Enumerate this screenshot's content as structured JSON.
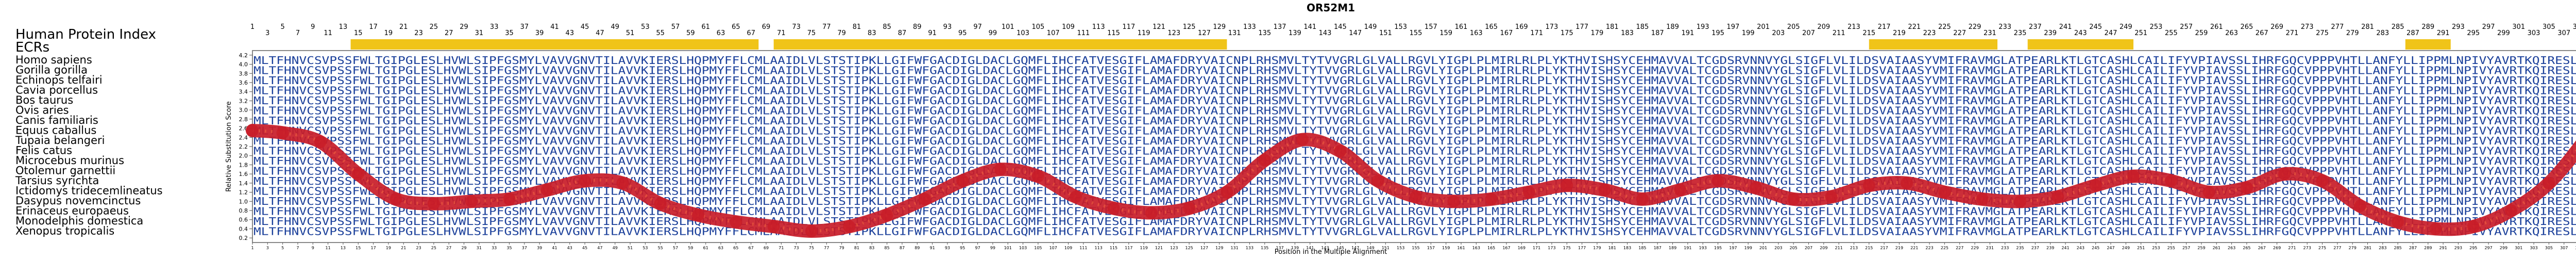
{
  "title": "OR52M1",
  "index_label": "Human Protein Index",
  "ecrs_label": "ECRs",
  "y_axis_label": "Relative Substitution Score",
  "x_axis_label": "Position in the Multiple Alignment",
  "colors": {
    "curve": "#c81c28",
    "curve_spot": "#f06040",
    "sequence_text": "#1a3f9a",
    "ecr_bar": "#f0c419",
    "frame": "#888888"
  },
  "y_ticks": [
    "0.2",
    "0.4",
    "0.6",
    "0.8",
    "1.0",
    "1.2",
    "1.4",
    "1.6",
    "1.8",
    "2.0",
    "2.2",
    "2.4",
    "2.6",
    "2.8",
    "3.0",
    "3.2",
    "3.4",
    "3.6",
    "3.8",
    "4.0",
    "4.2"
  ],
  "species": [
    "Homo sapiens",
    "Gorilla gorilla",
    "Echinops telfairi",
    "Cavia porcellus",
    "Bos taurus",
    "Ovis aries",
    "Canis familiaris",
    "Equus caballus",
    "Tupaia belangeri",
    "Felis catus",
    "Microcebus murinus",
    "Otolemur garnettii",
    "Tarsius syrichta",
    "Ictidomys tridecemlineatus",
    "Dasypus novemcinctus",
    "Erinaceus europaeus",
    "Monodelphis domestica",
    "Xenopus tropicalis"
  ],
  "sequence": "MLTFHNVCSVPSSFWLTGIPGLESLHVWLSIPFGSMYLVAVVGNVTILAVVKIERSLHQPMYFFLCMLAAIDLVLSTSTIPKLLGIFWFGACDIGLDACLGQMFLIHCFATVESGIFLAMAFDRYVAICNPLRHSMVLTYTVVGRLGLVALLRGVLYIGPLPLMIRLRLPLYKTHVISHSYCEHMAVVALTCGDSRVNNVYGLSIGFLVLILDSVAIAASYVMIFRAVMGLATPEARLKTLGTCASHLCAILIFYVPIAVSSLIHRFGQCVPPPVHTLLANFYLLIPPMLNPIVYAVRTKQIRESLLQRIPRLPF",
  "chart_data": {
    "type": "line",
    "title": "OR52M1",
    "xlabel": "Position in the Multiple Alignment",
    "ylabel": "Relative Substitution Score",
    "xlim": [
      1,
      318
    ],
    "ylim": [
      0.1,
      4.3
    ],
    "top_index_ticks": [
      "1",
      "3",
      "5",
      "7",
      "9",
      "11",
      "13",
      "15",
      "17",
      "19",
      "21",
      "23",
      "25",
      "27",
      "29",
      "31",
      "33",
      "35",
      "37",
      "39",
      "41",
      "43",
      "45",
      "47",
      "49",
      "51",
      "53",
      "55",
      "57",
      "59",
      "61",
      "63",
      "65",
      "67",
      "69",
      "71",
      "73",
      "75",
      "77",
      "79",
      "81",
      "83",
      "85",
      "87",
      "89",
      "91",
      "93",
      "95",
      "97",
      "99",
      "101",
      "103",
      "105",
      "107",
      "109",
      "111",
      "113",
      "115",
      "117",
      "119",
      "121",
      "123",
      "125",
      "127",
      "129",
      "131",
      "133",
      "135",
      "137",
      "139",
      "141",
      "143",
      "145",
      "147",
      "149",
      "151",
      "153",
      "155",
      "157",
      "159",
      "161",
      "163",
      "165",
      "167",
      "169",
      "171",
      "173",
      "175",
      "177",
      "179",
      "181",
      "183",
      "185",
      "187",
      "189",
      "191",
      "193",
      "195",
      "197",
      "199",
      "201",
      "203",
      "205",
      "207",
      "209",
      "211",
      "213",
      "215",
      "217",
      "219",
      "221",
      "223",
      "225",
      "227",
      "229",
      "231",
      "233",
      "235",
      "237",
      "239",
      "241",
      "243",
      "245",
      "247",
      "249",
      "251",
      "253",
      "255",
      "257",
      "259",
      "261",
      "263",
      "265",
      "267",
      "269",
      "271",
      "273",
      "275",
      "277",
      "279",
      "281",
      "283",
      "285",
      "287",
      "289",
      "291",
      "293",
      "295",
      "297",
      "299",
      "301",
      "303",
      "305",
      "307",
      "309",
      "311",
      "313",
      "315",
      "317"
    ],
    "bottom_ticks": [
      "1",
      "3",
      "5",
      "7",
      "9",
      "11",
      "13",
      "15",
      "17",
      "19",
      "21",
      "23",
      "25",
      "27",
      "29",
      "31",
      "33",
      "35",
      "37",
      "39",
      "41",
      "43",
      "45",
      "47",
      "49",
      "51",
      "53",
      "55",
      "57",
      "59",
      "61",
      "63",
      "65",
      "67",
      "69",
      "71",
      "73",
      "75",
      "77",
      "79",
      "81",
      "83",
      "85",
      "87",
      "89",
      "91",
      "93",
      "95",
      "97",
      "99",
      "101",
      "103",
      "105",
      "107",
      "109",
      "111",
      "113",
      "115",
      "117",
      "119",
      "121",
      "123",
      "125",
      "127",
      "129",
      "131",
      "133",
      "135",
      "137",
      "139",
      "141",
      "143",
      "145",
      "147",
      "149",
      "151",
      "153",
      "155",
      "157",
      "159",
      "161",
      "163",
      "165",
      "167",
      "169",
      "171",
      "173",
      "175",
      "177",
      "179",
      "181",
      "183",
      "185",
      "187",
      "189",
      "191",
      "193",
      "195",
      "197",
      "199",
      "201",
      "203",
      "205",
      "207",
      "209",
      "211",
      "213",
      "215",
      "217",
      "219",
      "221",
      "223",
      "225",
      "227",
      "229",
      "231",
      "233",
      "235",
      "237",
      "239",
      "241",
      "243",
      "245",
      "247",
      "249",
      "251",
      "253",
      "255",
      "257",
      "259",
      "261",
      "263",
      "265",
      "267",
      "269",
      "271",
      "273",
      "275",
      "277",
      "279",
      "281",
      "283",
      "285",
      "287",
      "289",
      "291",
      "293",
      "295",
      "297",
      "299",
      "301",
      "303",
      "305",
      "307",
      "309",
      "311",
      "313",
      "315",
      "317"
    ],
    "ecr_ranges": [
      [
        14,
        68
      ],
      [
        70,
        130
      ],
      [
        215,
        232
      ],
      [
        236,
        250
      ],
      [
        286,
        292
      ]
    ],
    "series": [
      {
        "x": [
          1,
          5,
          10,
          15,
          20,
          25,
          30,
          35,
          40,
          45,
          50,
          55,
          60,
          65,
          70,
          75,
          80,
          85,
          90,
          95,
          100,
          105,
          110,
          115,
          120,
          125,
          130,
          135,
          140,
          145,
          150,
          155,
          160,
          165,
          170,
          175,
          180,
          185,
          190,
          195,
          200,
          205,
          210,
          215,
          220,
          225,
          230,
          235,
          240,
          245,
          250,
          255,
          260,
          265,
          270,
          275,
          280,
          285,
          290,
          295,
          300,
          305,
          310,
          315,
          318
        ],
        "y": [
          2.55,
          2.5,
          2.3,
          1.6,
          1.05,
          0.95,
          1.0,
          1.05,
          1.25,
          1.45,
          1.4,
          0.95,
          0.7,
          0.55,
          0.45,
          0.35,
          0.45,
          0.7,
          1.05,
          1.45,
          1.7,
          1.55,
          1.1,
          0.85,
          0.75,
          0.85,
          1.2,
          1.9,
          2.35,
          2.1,
          1.45,
          1.1,
          1.0,
          1.05,
          1.2,
          1.35,
          1.25,
          1.05,
          1.25,
          1.45,
          1.3,
          1.05,
          1.1,
          1.35,
          1.4,
          1.2,
          1.05,
          1.0,
          1.1,
          1.35,
          1.55,
          1.45,
          1.2,
          1.3,
          1.6,
          1.45,
          0.9,
          0.55,
          0.4,
          0.45,
          0.8,
          1.4,
          2.4,
          3.6,
          4.05
        ]
      }
    ]
  }
}
